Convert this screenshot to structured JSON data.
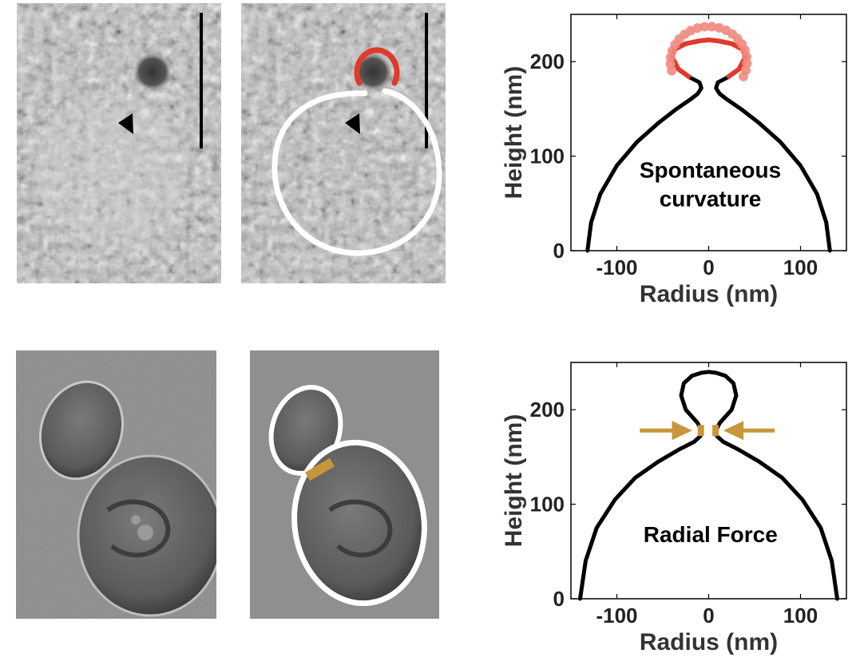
{
  "colors": {
    "membrane": "#000000",
    "coat": "#e03a2a",
    "coat_beads": "#f08a80",
    "ring": "#c8963a",
    "outline": "#ffffff"
  },
  "icons": [
    "arrowhead-marker-icon",
    "scale-bar",
    "force-arrow-icon"
  ],
  "chart_data": [
    {
      "type": "line",
      "title": "",
      "annotation": "Spontaneous curvature",
      "annotation_lines": [
        "Spontaneous",
        "curvature"
      ],
      "xlabel": "Radius (nm)",
      "ylabel": "Height (nm)",
      "xlim": [
        -150,
        150
      ],
      "ylim": [
        0,
        250
      ],
      "xticks": [
        "-100",
        "0",
        "100"
      ],
      "yticks": [
        "0",
        "100",
        "200"
      ],
      "series": [
        {
          "x": [
            -132,
            -128,
            -118,
            -100,
            -78,
            -55,
            -35,
            -20,
            -12,
            -8,
            -10,
            -20,
            -33,
            -40,
            -37,
            -25,
            -10,
            0,
            10,
            25,
            37,
            40,
            33,
            20,
            10,
            8,
            12,
            20,
            35,
            55,
            78,
            100,
            118,
            128,
            132
          ],
          "y": [
            0,
            30,
            60,
            90,
            115,
            135,
            150,
            160,
            166,
            172,
            178,
            183,
            192,
            205,
            213,
            219,
            222,
            223,
            222,
            219,
            213,
            205,
            192,
            183,
            178,
            172,
            166,
            160,
            150,
            135,
            115,
            90,
            60,
            30,
            0
          ]
        }
      ]
    },
    {
      "type": "line",
      "title": "",
      "annotation": "Radial Force",
      "xlabel": "Radius (nm)",
      "ylabel": "Height (nm)",
      "xlim": [
        -150,
        150
      ],
      "ylim": [
        0,
        250
      ],
      "xticks": [
        "-100",
        "0",
        "100"
      ],
      "yticks": [
        "0",
        "100",
        "200"
      ],
      "series": [
        {
          "x": [
            -140,
            -134,
            -122,
            -102,
            -80,
            -55,
            -32,
            -16,
            -9,
            -8,
            -12,
            -25,
            -30,
            -27,
            -18,
            -8,
            0,
            8,
            18,
            27,
            30,
            25,
            12,
            8,
            9,
            16,
            32,
            55,
            80,
            102,
            122,
            134,
            140
          ],
          "y": [
            0,
            40,
            75,
            105,
            128,
            145,
            158,
            166,
            172,
            178,
            186,
            200,
            215,
            228,
            236,
            239,
            240,
            239,
            236,
            228,
            215,
            200,
            186,
            178,
            172,
            166,
            158,
            145,
            128,
            105,
            75,
            40,
            0
          ]
        }
      ]
    }
  ]
}
